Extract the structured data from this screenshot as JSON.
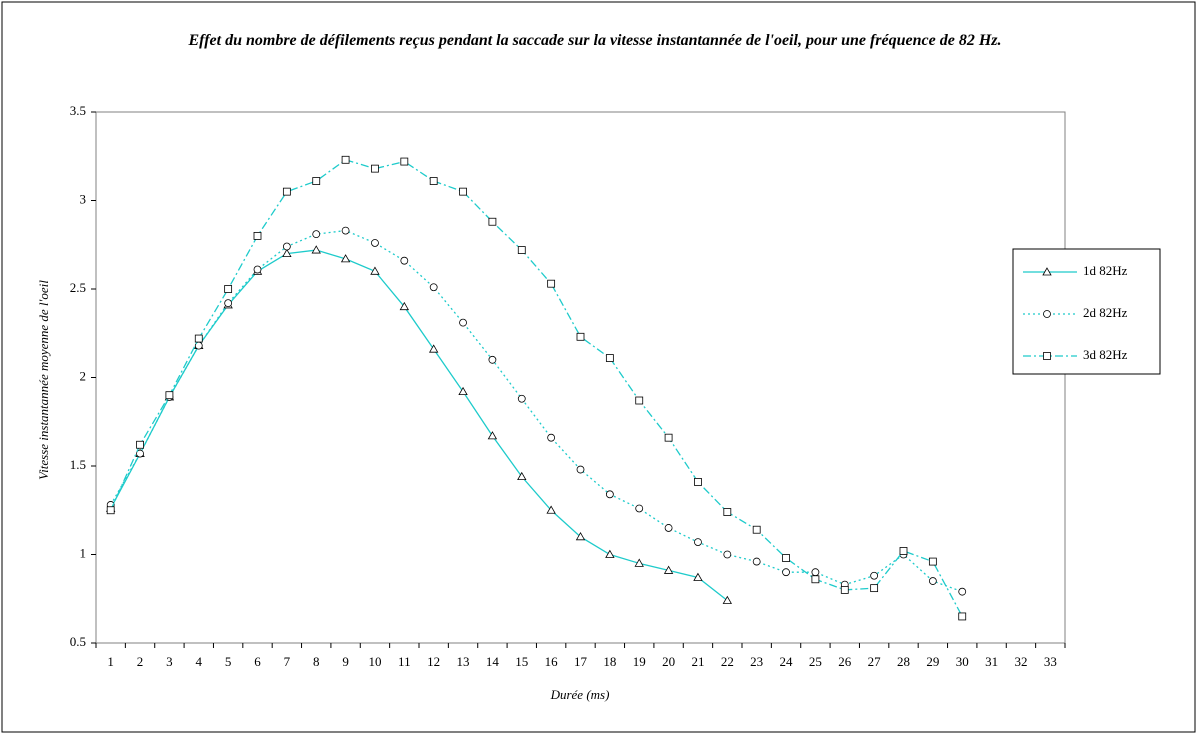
{
  "chart_data": {
    "type": "line",
    "title": "Effet du nombre de défilements reçus pendant la saccade sur la vitesse instantannée de l'oeil, pour une fréquence de 82 Hz.",
    "x_label": "Durée (ms)",
    "y_label": "Vitesse instantannée moyenne de l'oeil",
    "categories": [
      "1",
      "2",
      "3",
      "4",
      "5",
      "6",
      "7",
      "8",
      "9",
      "10",
      "11",
      "12",
      "13",
      "14",
      "15",
      "16",
      "17",
      "18",
      "19",
      "20",
      "21",
      "22",
      "23",
      "24",
      "25",
      "26",
      "27",
      "28",
      "29",
      "30",
      "31",
      "32",
      "33"
    ],
    "ylim": [
      0.5,
      3.5
    ],
    "yticks": [
      0.5,
      1,
      1.5,
      2,
      2.5,
      3,
      3.5
    ],
    "grid": false,
    "legend": "right",
    "series": [
      {
        "name": "1d 82Hz",
        "color": "#1ecbcb",
        "dash": "solid",
        "marker": "triangle",
        "values": [
          1.26,
          1.57,
          1.89,
          2.18,
          2.41,
          2.6,
          2.7,
          2.72,
          2.67,
          2.6,
          2.4,
          2.16,
          1.92,
          1.67,
          1.44,
          1.25,
          1.1,
          1.0,
          0.95,
          0.91,
          0.87,
          0.74,
          null,
          null,
          null,
          null,
          null,
          null,
          null,
          null,
          null,
          null,
          null
        ]
      },
      {
        "name": "2d 82Hz",
        "color": "#1ecbcb",
        "dash": "dotted",
        "marker": "circle",
        "values": [
          1.28,
          1.57,
          1.89,
          2.18,
          2.42,
          2.61,
          2.74,
          2.81,
          2.83,
          2.76,
          2.66,
          2.51,
          2.31,
          2.1,
          1.88,
          1.66,
          1.48,
          1.34,
          1.26,
          1.15,
          1.07,
          1.0,
          0.96,
          0.9,
          0.9,
          0.83,
          0.88,
          1.0,
          0.85,
          0.79,
          null,
          null,
          null
        ]
      },
      {
        "name": "3d 82Hz",
        "color": "#1ecbcb",
        "dash": "dashdot",
        "marker": "square",
        "values": [
          1.25,
          1.62,
          1.9,
          2.22,
          2.5,
          2.8,
          3.05,
          3.11,
          3.23,
          3.18,
          3.22,
          3.11,
          3.05,
          2.88,
          2.72,
          2.53,
          2.23,
          2.11,
          1.87,
          1.66,
          1.41,
          1.24,
          1.14,
          0.98,
          0.86,
          0.8,
          0.81,
          1.02,
          0.96,
          0.65,
          null,
          null,
          null
        ]
      }
    ]
  }
}
